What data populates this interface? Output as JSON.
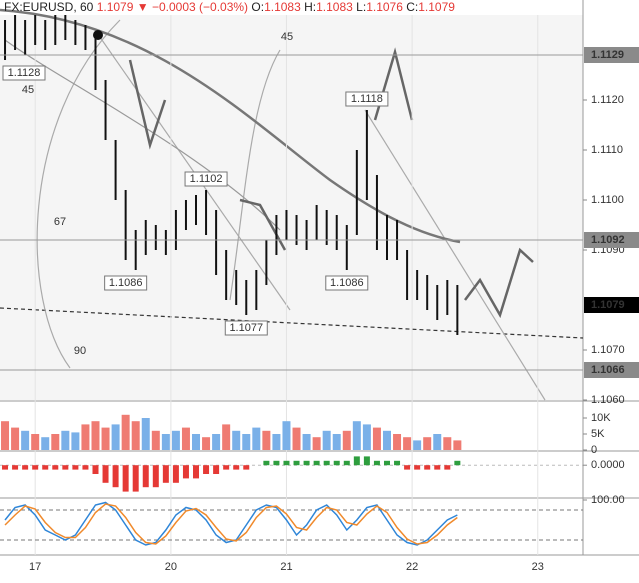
{
  "header": {
    "symbol": "FX:EURUSD, 60",
    "last": 1.1079,
    "arrow": "▼",
    "change": "−0.0003 (−0.03%)",
    "o_label": "O:",
    "o": 1.1083,
    "h_label": "H:",
    "h": 1.1083,
    "l_label": "L:",
    "l": 1.1076,
    "c_label": "C:",
    "c": 1.1079
  },
  "chart_data": [
    {
      "type": "ohlc",
      "color": "#111111",
      "x": [
        0,
        2,
        4,
        6,
        8,
        10,
        12,
        14,
        16,
        18,
        20,
        22,
        24,
        26,
        28,
        30,
        32,
        34,
        36,
        38,
        40,
        42,
        44,
        46,
        48,
        50,
        52,
        54,
        56,
        58,
        60,
        62,
        64,
        66,
        68,
        70,
        72,
        74,
        76,
        78,
        80,
        82,
        84,
        86,
        88,
        90
      ],
      "high": [
        1.1136,
        1.1137,
        1.1136,
        1.1137,
        1.1136,
        1.1137,
        1.1137,
        1.1136,
        1.1135,
        1.1133,
        1.1124,
        1.1112,
        1.1102,
        1.1094,
        1.1096,
        1.1095,
        1.1094,
        1.1098,
        1.11,
        1.1101,
        1.1102,
        1.1098,
        1.109,
        1.1086,
        1.1084,
        1.1086,
        1.1092,
        1.1097,
        1.1098,
        1.1097,
        1.1096,
        1.1099,
        1.1098,
        1.1097,
        1.1095,
        1.111,
        1.1118,
        1.1105,
        1.1097,
        1.1096,
        1.109,
        1.1086,
        1.1085,
        1.1083,
        1.1084,
        1.1083
      ],
      "low": [
        1.1128,
        1.113,
        1.1129,
        1.1131,
        1.113,
        1.1131,
        1.1132,
        1.1131,
        1.113,
        1.1122,
        1.1112,
        1.11,
        1.1088,
        1.1086,
        1.1089,
        1.109,
        1.1089,
        1.109,
        1.1094,
        1.1095,
        1.1093,
        1.1085,
        1.108,
        1.1079,
        1.1077,
        1.1078,
        1.1083,
        1.1089,
        1.1092,
        1.1091,
        1.109,
        1.1092,
        1.1091,
        1.109,
        1.1086,
        1.1093,
        1.11,
        1.109,
        1.1088,
        1.1088,
        1.108,
        1.108,
        1.1078,
        1.1076,
        1.1077,
        1.1073
      ],
      "xlim": [
        -1,
        115
      ],
      "xticks": [
        {
          "value": 6,
          "label": "17"
        },
        {
          "value": 33,
          "label": "20"
        },
        {
          "value": 56,
          "label": "21"
        },
        {
          "value": 81,
          "label": "22"
        },
        {
          "value": 106,
          "label": "23"
        }
      ],
      "ylim": [
        1.106,
        1.1137
      ],
      "yticks": [
        {
          "value": 1.112,
          "label": "1.1120"
        },
        {
          "value": 1.111,
          "label": "1.1110"
        },
        {
          "value": 1.11,
          "label": "1.1100"
        },
        {
          "value": 1.109,
          "label": "1.1090"
        },
        {
          "value": 1.107,
          "label": "1.1070"
        },
        {
          "value": 1.106,
          "label": "1.1060"
        }
      ],
      "price_labels": [
        {
          "value": 1.1129,
          "color": "#8a8a8a",
          "line": true
        },
        {
          "value": 1.1092,
          "color": "#8a8a8a",
          "line": true
        },
        {
          "value": 1.1079,
          "color": "#000000",
          "line": false
        },
        {
          "value": 1.1066,
          "color": "#8a8a8a",
          "line": true
        }
      ],
      "annotations": [
        {
          "x": 0,
          "value": 1.1128
        },
        {
          "x": 72,
          "value": 1.1118
        },
        {
          "x": 40,
          "value": 1.1102
        },
        {
          "x": 24,
          "value": 1.1086
        },
        {
          "x": 68,
          "value": 1.1086
        },
        {
          "x": 48,
          "value": 1.1077
        }
      ],
      "fib_labels": [
        "45",
        "45",
        "67",
        "90"
      ]
    },
    {
      "type": "volume",
      "values": [
        9000,
        7000,
        6000,
        5000,
        4000,
        5000,
        6000,
        5500,
        8000,
        9000,
        7000,
        8000,
        11000,
        9000,
        10000,
        6000,
        5000,
        6000,
        7000,
        5000,
        4000,
        5000,
        8000,
        6000,
        5000,
        7000,
        6000,
        5000,
        9000,
        7000,
        5000,
        4000,
        6000,
        5000,
        6000,
        9000,
        8000,
        7000,
        6000,
        5000,
        4000,
        3000,
        4000,
        5000,
        4000,
        3000
      ],
      "colors": [
        "#ef7b72",
        "#ef7b72",
        "#7ab0e8",
        "#ef7b72",
        "#7ab0e8",
        "#ef7b72",
        "#7ab0e8",
        "#7ab0e8",
        "#ef7b72",
        "#ef7b72",
        "#ef7b72",
        "#7ab0e8",
        "#ef7b72",
        "#ef7b72",
        "#7ab0e8",
        "#ef7b72",
        "#7ab0e8",
        "#7ab0e8",
        "#ef7b72",
        "#7ab0e8",
        "#ef7b72",
        "#7ab0e8",
        "#ef7b72",
        "#7ab0e8",
        "#7ab0e8",
        "#7ab0e8",
        "#ef7b72",
        "#7ab0e8",
        "#7ab0e8",
        "#ef7b72",
        "#7ab0e8",
        "#ef7b72",
        "#7ab0e8",
        "#7ab0e8",
        "#ef7b72",
        "#7ab0e8",
        "#7ab0e8",
        "#ef7b72",
        "#7ab0e8",
        "#ef7b72",
        "#ef7b72",
        "#7ab0e8",
        "#ef7b72",
        "#7ab0e8",
        "#ef7b72",
        "#ef7b72"
      ],
      "ylim": [
        0,
        15000
      ],
      "yticks": [
        {
          "value": 10000,
          "label": "10K"
        },
        {
          "value": 5000,
          "label": "5K"
        },
        0
      ]
    },
    {
      "type": "histogram",
      "pos_color": "#2e9e3e",
      "neg_color": "#e53935",
      "values": [
        -0.0001,
        -0.0001,
        -0.0001,
        -0.0001,
        -0.0001,
        -0.0001,
        -0.0001,
        -0.0001,
        -0.0001,
        -0.0002,
        -0.0004,
        -0.0005,
        -0.0006,
        -0.0006,
        -0.0005,
        -0.0005,
        -0.0004,
        -0.0004,
        -0.0003,
        -0.0003,
        -0.0002,
        -0.0002,
        -0.0001,
        -0.0001,
        -0.0001,
        0,
        0.0001,
        0.0001,
        0.0001,
        0.0001,
        0.0001,
        0.0001,
        0.0001,
        0.0001,
        0.0001,
        0.0002,
        0.0002,
        0.0001,
        0.0001,
        0.0001,
        -0.0001,
        -0.0001,
        -0.0001,
        -0.0001,
        -0.0001,
        0.0001
      ],
      "ylim": [
        -0.0007,
        0.0003
      ],
      "yticks": [
        {
          "value": 0,
          "label": "0.0000"
        }
      ]
    },
    {
      "type": "oscillator",
      "series": [
        {
          "color": "#2f86d8",
          "values": [
            60,
            85,
            90,
            70,
            40,
            30,
            20,
            30,
            60,
            90,
            95,
            80,
            50,
            20,
            10,
            15,
            40,
            70,
            85,
            80,
            60,
            30,
            15,
            20,
            50,
            80,
            90,
            85,
            60,
            30,
            50,
            80,
            90,
            70,
            40,
            60,
            85,
            90,
            60,
            30,
            15,
            10,
            20,
            40,
            60,
            70
          ]
        },
        {
          "color": "#f08a2c",
          "values": [
            50,
            70,
            88,
            82,
            55,
            35,
            25,
            25,
            45,
            75,
            92,
            88,
            65,
            35,
            15,
            12,
            28,
            55,
            78,
            83,
            70,
            45,
            22,
            18,
            35,
            65,
            85,
            88,
            72,
            45,
            40,
            65,
            85,
            80,
            55,
            50,
            72,
            88,
            75,
            45,
            22,
            12,
            15,
            30,
            50,
            65
          ]
        }
      ],
      "levels": [
        80,
        20
      ],
      "ylim": [
        0,
        100
      ],
      "yticks": [
        {
          "value": 100,
          "label": "100.00"
        }
      ]
    }
  ]
}
